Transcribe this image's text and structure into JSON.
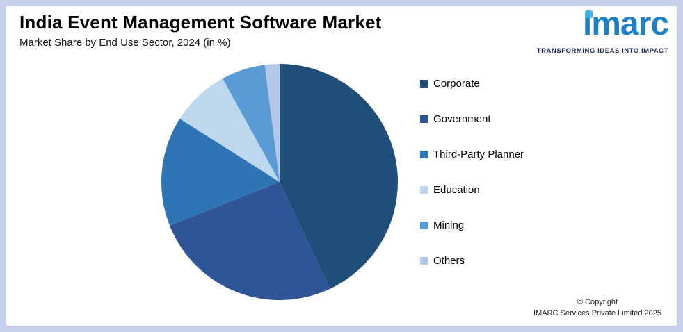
{
  "header": {
    "title": "India Event Management Software Market",
    "subtitle": "Market Share by End Use Sector, 2024 (in %)"
  },
  "logo": {
    "text": "imarc",
    "tagline": "TRANSFORMING IDEAS INTO IMPACT"
  },
  "footer": {
    "copyright_line1": "© Copyright",
    "copyright_line2": "IMARC Services Private Limited 2025"
  },
  "colors": {
    "page_background": "#c8d1eb",
    "card_background": "#ffffff",
    "logo_blue": "#1d7fc4",
    "logo_dot_blue": "#35b6ea",
    "tagline_navy": "#1b2558"
  },
  "chart_data": {
    "type": "pie",
    "title": "India Event Management Software Market",
    "subtitle": "Market Share by End Use Sector, 2024 (in %)",
    "unit": "%",
    "legend_position": "right",
    "start_angle_deg": -90,
    "direction": "clockwise",
    "slices": [
      {
        "label": "Corporate",
        "value": 43,
        "color": "#1F4E79"
      },
      {
        "label": "Government",
        "value": 26,
        "color": "#2F5597"
      },
      {
        "label": "Third-Party Planner",
        "value": 15,
        "color": "#2E75B6"
      },
      {
        "label": "Education",
        "value": 8,
        "color": "#BDD7EE"
      },
      {
        "label": "Mining",
        "value": 6,
        "color": "#5B9BD5"
      },
      {
        "label": "Others",
        "value": 2,
        "color": "#B4C7E7"
      }
    ]
  }
}
